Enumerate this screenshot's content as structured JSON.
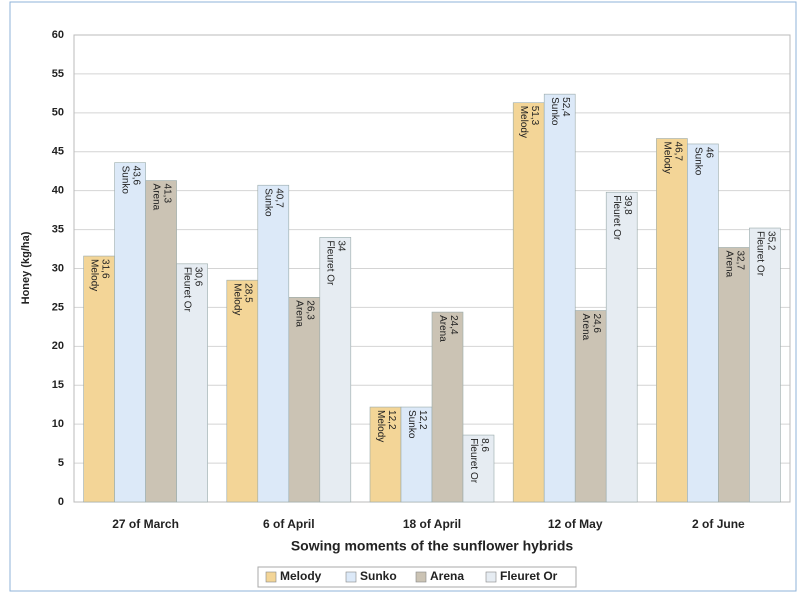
{
  "chart_data": {
    "type": "bar",
    "x_label": "Sowing moments of the sunflower hybrids",
    "y_label": "Honey (kg/ha)",
    "categories": [
      "27 of March",
      "6 of April",
      "18 of April",
      "12 of May",
      "2 of June"
    ],
    "series": [
      {
        "name": "Melody",
        "color": "#f3d597",
        "values": [
          31.6,
          28.5,
          12.2,
          51.3,
          46.7
        ],
        "value_labels": [
          "31,6",
          "28,5",
          "12,2",
          "51,3",
          "46,7"
        ]
      },
      {
        "name": "Sunko",
        "color": "#dce9f8",
        "values": [
          43.6,
          40.7,
          12.2,
          52.4,
          46
        ],
        "value_labels": [
          "43,6",
          "40,7",
          "12,2",
          "52,4",
          "46"
        ]
      },
      {
        "name": "Arena",
        "color": "#cbc3b4",
        "values": [
          41.3,
          26.3,
          24.4,
          24.6,
          32.7
        ],
        "value_labels": [
          "41,3",
          "26,3",
          "24,4",
          "24,6",
          "32,7"
        ]
      },
      {
        "name": "Fleuret Or",
        "color": "#e6ecf2",
        "values": [
          30.6,
          34,
          8.6,
          39.8,
          35.2
        ],
        "value_labels": [
          "30,6",
          "34",
          "8,6",
          "39,8",
          "35,2"
        ]
      }
    ],
    "ylim": [
      0,
      60
    ],
    "yticks": [
      0,
      5,
      10,
      15,
      20,
      25,
      30,
      35,
      40,
      45,
      50,
      55,
      60
    ],
    "grid": true,
    "legend": "bottom"
  }
}
